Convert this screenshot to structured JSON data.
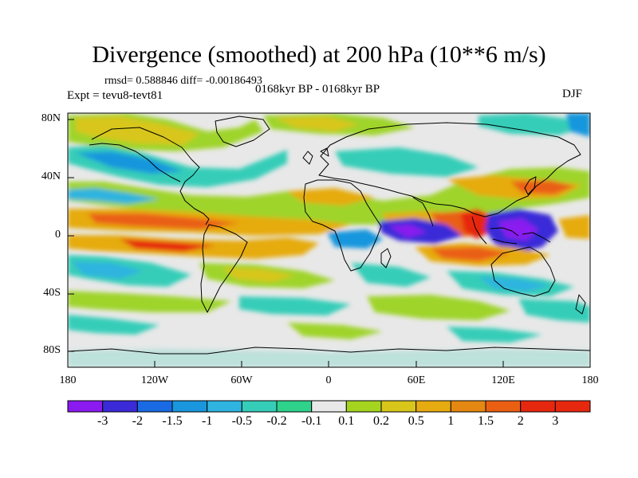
{
  "title": "Divergence (smoothed) at 200 hPa (10**6 m/s)",
  "stats": "rmsd= 0.588846 diff= -0.00186493",
  "experiment": "Expt = tevu8-tevt81",
  "period": "0168kyr BP - 0168kyr BP",
  "season": "DJF",
  "chart_data": {
    "type": "heatmap",
    "projection": "cylindrical-equidistant",
    "variable": "200 hPa smoothed divergence difference",
    "units": "10**6 m/s",
    "xlim": [
      -180,
      180
    ],
    "ylim": [
      -90,
      90
    ],
    "x_tick_values": [
      -180,
      -120,
      -60,
      0,
      60,
      120,
      180
    ],
    "y_tick_values": [
      80,
      40,
      0,
      -40,
      -80
    ],
    "x_tick_labels": [
      "180",
      "120W",
      "60W",
      "0",
      "60E",
      "120E",
      "180"
    ],
    "y_tick_labels": [
      "80N",
      "40N",
      "0",
      "40S",
      "80S"
    ],
    "colorbar": {
      "levels": [
        "-3",
        "-2",
        "-1.5",
        "-1",
        "-0.5",
        "-0.2",
        "-0.1",
        "0.1",
        "0.2",
        "0.5",
        "1",
        "1.5",
        "2",
        "3"
      ],
      "colors": [
        "#8a1aef",
        "#3b2ad8",
        "#1a6be3",
        "#1996dd",
        "#2fb4df",
        "#36cdb8",
        "#2ed28b",
        "#e8e8e8",
        "#a5d420",
        "#d8c61a",
        "#e6ab10",
        "#e58811",
        "#ea5f12",
        "#e6280f",
        "#e6280f"
      ]
    },
    "notable_features": [
      {
        "label": "strong convergence",
        "lon": 70,
        "lat": 0,
        "value": -3
      },
      {
        "label": "strong convergence",
        "lon": 128,
        "lat": 2,
        "value": -3
      },
      {
        "label": "strong divergence",
        "lon": 98,
        "lat": 3,
        "value": 3
      },
      {
        "label": "divergence band",
        "lon": 150,
        "lat": 28,
        "value": 1.5
      }
    ]
  }
}
